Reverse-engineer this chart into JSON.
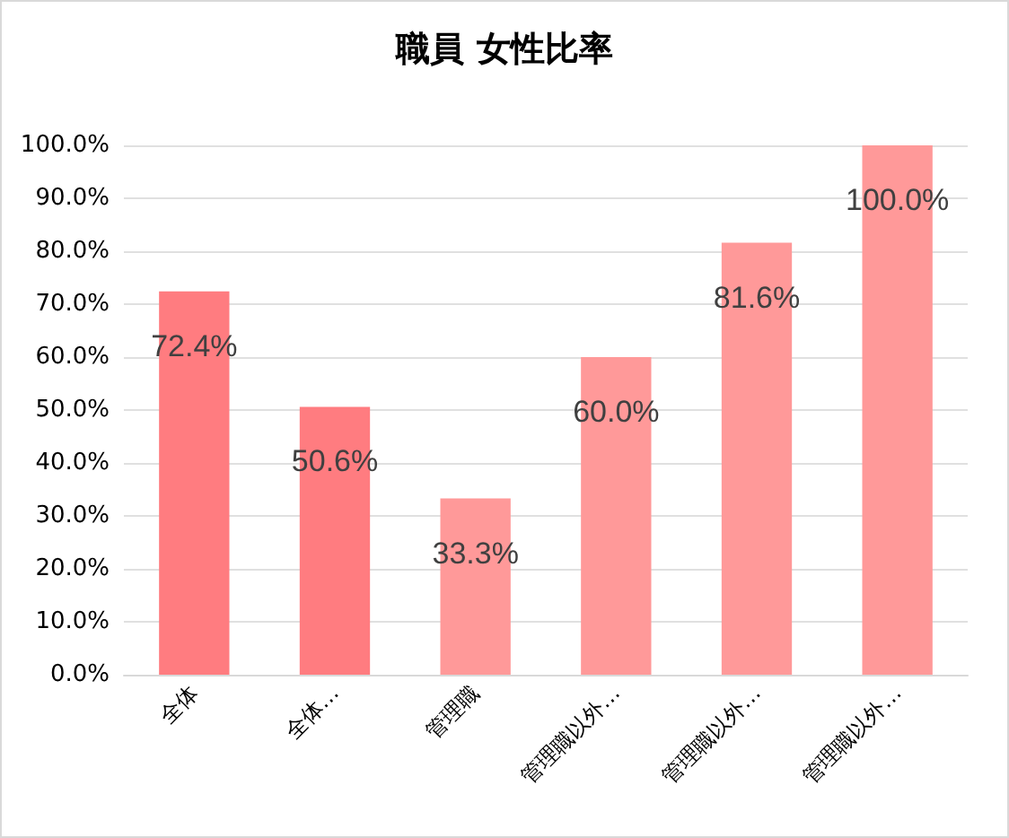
{
  "chart_data": {
    "type": "bar",
    "title": "職員 女性比率",
    "categories": [
      "全体",
      "全体…",
      "管理職",
      "管理職以外…",
      "管理職以外…",
      "管理職以外…"
    ],
    "values": [
      72.4,
      50.6,
      33.3,
      60.0,
      81.6,
      100.0
    ],
    "colors": [
      "#ff7c80",
      "#ff7c80",
      "#ff9999",
      "#ff9999",
      "#ff9999",
      "#ff9999"
    ],
    "value_labels": [
      "72.4%",
      "50.6%",
      "33.3%",
      "60.0%",
      "81.6%",
      "100.0%"
    ],
    "ylim": [
      0,
      100
    ],
    "yticks": [
      {
        "value": 0,
        "label": "0.0%"
      },
      {
        "value": 10,
        "label": "10.0%"
      },
      {
        "value": 20,
        "label": "20.0%"
      },
      {
        "value": 30,
        "label": "30.0%"
      },
      {
        "value": 40,
        "label": "40.0%"
      },
      {
        "value": 50,
        "label": "50.0%"
      },
      {
        "value": 60,
        "label": "60.0%"
      },
      {
        "value": 70,
        "label": "70.0%"
      },
      {
        "value": 80,
        "label": "80.0%"
      },
      {
        "value": 90,
        "label": "90.0%"
      },
      {
        "value": 100,
        "label": "100.0%"
      }
    ],
    "grid": "y"
  }
}
